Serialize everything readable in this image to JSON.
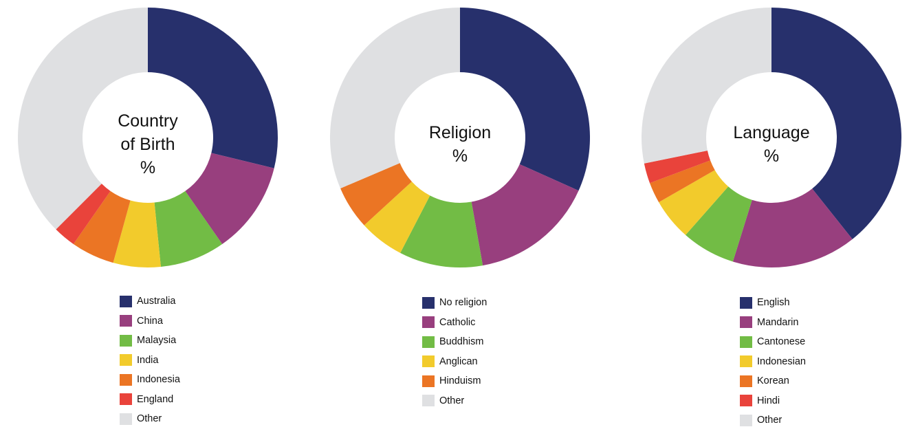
{
  "chart_data": [
    {
      "type": "pie",
      "center_text": [
        "Country",
        "of Birth",
        "%"
      ],
      "categories": [
        "Australia",
        "China",
        "Malaysia",
        "India",
        "Indonesia",
        "England",
        "Other"
      ],
      "values": [
        28.8,
        11.5,
        8.1,
        5.9,
        5.4,
        2.8,
        37.5
      ],
      "colors": [
        "#27306c",
        "#983f7e",
        "#72bc45",
        "#f2cb2c",
        "#eb7524",
        "#e9433b",
        "#dfe0e2"
      ]
    },
    {
      "type": "pie",
      "center_text": [
        "Religion",
        "%"
      ],
      "categories": [
        "No religion",
        "Catholic",
        "Buddhism",
        "Anglican",
        "Hinduism",
        "Other"
      ],
      "values": [
        31.7,
        15.5,
        10.4,
        5.6,
        5.4,
        31.4
      ],
      "colors": [
        "#27306c",
        "#983f7e",
        "#72bc45",
        "#f2cb2c",
        "#eb7524",
        "#dfe0e2"
      ]
    },
    {
      "type": "pie",
      "center_text": [
        "Language",
        "%"
      ],
      "categories": [
        "English",
        "Mandarin",
        "Cantonese",
        "Indonesian",
        "Korean",
        "Hindi",
        "Other"
      ],
      "values": [
        39.3,
        15.5,
        6.7,
        5.2,
        2.6,
        2.5,
        28.2
      ],
      "colors": [
        "#27306c",
        "#983f7e",
        "#72bc45",
        "#f2cb2c",
        "#eb7524",
        "#e9433b",
        "#dfe0e2"
      ]
    }
  ]
}
